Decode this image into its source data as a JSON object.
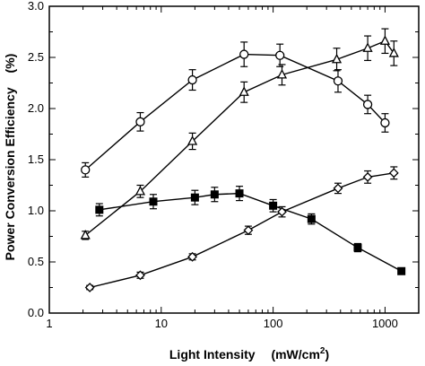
{
  "chart_data": {
    "type": "scatter",
    "xlabel": "Light Intensity",
    "xlabel_unit_prefix": "(mW/cm",
    "xlabel_unit_sup": "2",
    "xlabel_unit_suffix": ")",
    "ylabel": "Power Conversion Efficiency",
    "ylabel_unit": "(%)",
    "xscale": "log",
    "xlim": [
      1,
      2000
    ],
    "ylim": [
      0,
      3.0
    ],
    "x_ticks": [
      1,
      10,
      100,
      1000
    ],
    "x_tick_labels": [
      "1",
      "10",
      "100",
      "1000"
    ],
    "y_ticks": [
      0,
      0.5,
      1.0,
      1.5,
      2.0,
      2.5,
      3.0
    ],
    "y_tick_labels": [
      "0.0",
      "0.5",
      "1.0",
      "1.5",
      "2.0",
      "2.5",
      "3.0"
    ],
    "grid": false,
    "series": [
      {
        "marker": "circle-open",
        "line": true,
        "x": [
          2.1,
          6.5,
          19,
          55,
          115,
          380,
          700,
          1000
        ],
        "y": [
          1.4,
          1.87,
          2.28,
          2.53,
          2.52,
          2.27,
          2.04,
          1.86
        ],
        "err": [
          0.07,
          0.09,
          0.1,
          0.12,
          0.11,
          0.11,
          0.09,
          0.09
        ]
      },
      {
        "marker": "triangle-open",
        "line": true,
        "x": [
          2.1,
          6.5,
          19,
          55,
          120,
          370,
          700,
          1000,
          1200
        ],
        "y": [
          0.76,
          1.19,
          1.68,
          2.16,
          2.33,
          2.48,
          2.59,
          2.66,
          2.54
        ],
        "err": [
          0.04,
          0.06,
          0.08,
          0.1,
          0.1,
          0.11,
          0.12,
          0.12,
          0.12
        ]
      },
      {
        "marker": "square-filled",
        "line": true,
        "x": [
          2.8,
          8.5,
          20,
          30,
          50,
          100,
          220,
          570,
          1400
        ],
        "y": [
          1.01,
          1.09,
          1.13,
          1.16,
          1.17,
          1.05,
          0.92,
          0.64,
          0.41
        ],
        "err": [
          0.06,
          0.07,
          0.07,
          0.07,
          0.07,
          0.06,
          0.05,
          0.04,
          0.02
        ]
      },
      {
        "marker": "diamond-open",
        "line": true,
        "x": [
          2.3,
          6.5,
          19,
          60,
          120,
          380,
          700,
          1200
        ],
        "y": [
          0.25,
          0.37,
          0.55,
          0.81,
          0.99,
          1.22,
          1.33,
          1.37
        ],
        "err": [
          0.02,
          0.03,
          0.03,
          0.04,
          0.05,
          0.05,
          0.06,
          0.06
        ]
      }
    ]
  }
}
